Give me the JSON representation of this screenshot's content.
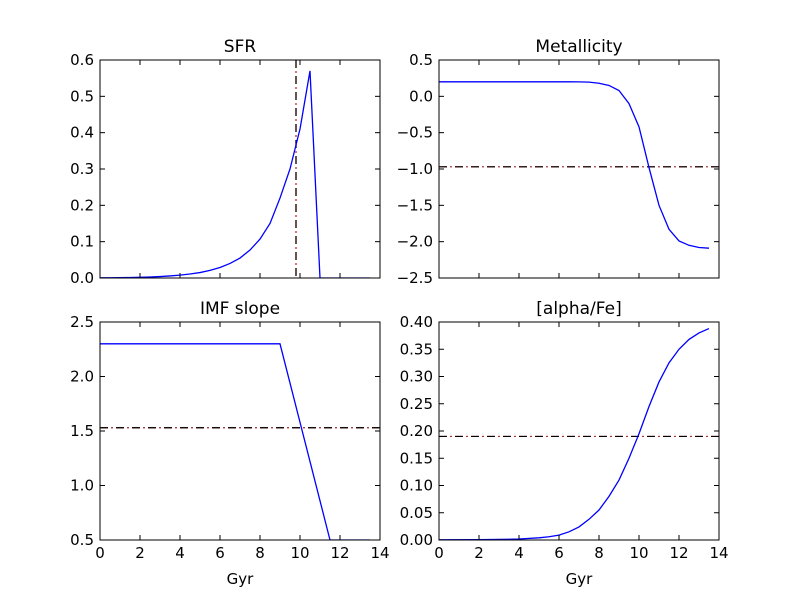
{
  "figure": {
    "background": "#ffffff"
  },
  "styles": {
    "line_color": "#0000ff",
    "ref_color_black": "#000000",
    "ref_color_red": "#b22222"
  },
  "chart_data": [
    {
      "id": "sfr",
      "type": "line",
      "title": "SFR",
      "xlabel": "",
      "ylabel": "",
      "xlim": [
        0,
        14
      ],
      "ylim": [
        0,
        0.6
      ],
      "xticks": [
        0,
        2,
        4,
        6,
        8,
        10,
        12,
        14
      ],
      "xtick_labels_visible": false,
      "yticks": [
        0.0,
        0.1,
        0.2,
        0.3,
        0.4,
        0.5,
        0.6
      ],
      "ytick_labels": [
        "0.0",
        "0.1",
        "0.2",
        "0.3",
        "0.4",
        "0.5",
        "0.6"
      ],
      "grid": false,
      "series": [
        {
          "x": [
            0.0,
            0.5,
            1.0,
            1.5,
            2.0,
            2.5,
            3.0,
            3.5,
            4.0,
            4.5,
            5.0,
            5.5,
            6.0,
            6.5,
            7.0,
            7.5,
            8.0,
            8.5,
            9.0,
            9.5,
            10.0,
            10.5,
            11.0,
            11.5,
            12.0,
            12.5,
            13.0,
            13.5
          ],
          "y": [
            0.0005,
            0.0007,
            0.001,
            0.0014,
            0.002,
            0.0028,
            0.004,
            0.0057,
            0.008,
            0.011,
            0.015,
            0.021,
            0.029,
            0.04,
            0.055,
            0.077,
            0.107,
            0.15,
            0.22,
            0.3,
            0.41,
            0.57,
            0.0,
            0.0,
            0.0,
            0.0,
            0.0,
            0.0
          ]
        }
      ],
      "reference_lines": [
        {
          "orientation": "vertical",
          "value": 9.8,
          "style": "dashdot"
        }
      ]
    },
    {
      "id": "metallicity",
      "type": "line",
      "title": "Metallicity",
      "xlabel": "",
      "ylabel": "",
      "xlim": [
        0,
        14
      ],
      "ylim": [
        -2.5,
        0.5
      ],
      "xticks": [
        0,
        2,
        4,
        6,
        8,
        10,
        12,
        14
      ],
      "xtick_labels_visible": false,
      "yticks": [
        -2.5,
        -2.0,
        -1.5,
        -1.0,
        -0.5,
        0.0,
        0.5
      ],
      "ytick_labels": [
        "−2.5",
        "−2.0",
        "−1.5",
        "−1.0",
        "−0.5",
        "0.0",
        "0.5"
      ],
      "grid": false,
      "series": [
        {
          "x": [
            0.0,
            5.0,
            6.0,
            6.5,
            7.0,
            7.5,
            8.0,
            8.5,
            9.0,
            9.5,
            10.0,
            10.5,
            11.0,
            11.5,
            12.0,
            12.5,
            13.0,
            13.5
          ],
          "y": [
            0.2,
            0.2,
            0.2,
            0.2,
            0.199,
            0.195,
            0.18,
            0.15,
            0.08,
            -0.1,
            -0.42,
            -0.98,
            -1.5,
            -1.83,
            -1.99,
            -2.05,
            -2.08,
            -2.09
          ]
        }
      ],
      "reference_lines": [
        {
          "orientation": "horizontal",
          "value": -0.97,
          "style": "dashdot"
        }
      ]
    },
    {
      "id": "imf",
      "type": "line",
      "title": "IMF slope",
      "xlabel": "Gyr",
      "ylabel": "",
      "xlim": [
        0,
        14
      ],
      "ylim": [
        0.5,
        2.5
      ],
      "xticks": [
        0,
        2,
        4,
        6,
        8,
        10,
        12,
        14
      ],
      "xtick_labels": [
        "0",
        "2",
        "4",
        "6",
        "8",
        "10",
        "12",
        "14"
      ],
      "xtick_labels_visible": true,
      "yticks": [
        0.5,
        1.0,
        1.5,
        2.0,
        2.5
      ],
      "ytick_labels": [
        "0.5",
        "1.0",
        "1.5",
        "2.0",
        "2.5"
      ],
      "grid": false,
      "series": [
        {
          "x": [
            0.0,
            9.0,
            11.5,
            13.5
          ],
          "y": [
            2.3,
            2.3,
            0.5,
            0.5
          ]
        }
      ],
      "reference_lines": [
        {
          "orientation": "horizontal",
          "value": 1.53,
          "style": "dashdot"
        }
      ]
    },
    {
      "id": "alpha",
      "type": "line",
      "title": "[alpha/Fe]",
      "xlabel": "Gyr",
      "ylabel": "",
      "xlim": [
        0,
        14
      ],
      "ylim": [
        0.0,
        0.4
      ],
      "xticks": [
        0,
        2,
        4,
        6,
        8,
        10,
        12,
        14
      ],
      "xtick_labels": [
        "0",
        "2",
        "4",
        "6",
        "8",
        "10",
        "12",
        "14"
      ],
      "xtick_labels_visible": true,
      "yticks": [
        0.0,
        0.05,
        0.1,
        0.15,
        0.2,
        0.25,
        0.3,
        0.35,
        0.4
      ],
      "ytick_labels": [
        "0.00",
        "0.05",
        "0.10",
        "0.15",
        "0.20",
        "0.25",
        "0.30",
        "0.35",
        "0.40"
      ],
      "grid": false,
      "series": [
        {
          "x": [
            0.0,
            2.0,
            3.0,
            4.0,
            5.0,
            5.5,
            6.0,
            6.5,
            7.0,
            7.5,
            8.0,
            8.5,
            9.0,
            9.5,
            10.0,
            10.5,
            11.0,
            11.5,
            12.0,
            12.5,
            13.0,
            13.5
          ],
          "y": [
            0.0005,
            0.0006,
            0.001,
            0.0018,
            0.004,
            0.006,
            0.009,
            0.015,
            0.024,
            0.038,
            0.055,
            0.08,
            0.11,
            0.15,
            0.195,
            0.245,
            0.29,
            0.325,
            0.35,
            0.368,
            0.38,
            0.388
          ]
        }
      ],
      "reference_lines": [
        {
          "orientation": "horizontal",
          "value": 0.19,
          "style": "dashdot"
        }
      ]
    }
  ]
}
